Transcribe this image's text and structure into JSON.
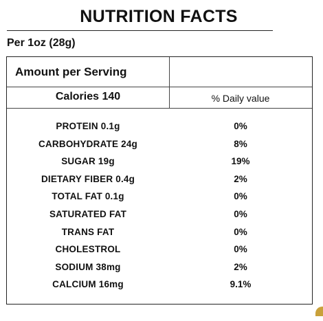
{
  "title": "NUTRITION FACTS",
  "serving": "Per 1oz (28g)",
  "table": {
    "amount_label": "Amount per Serving",
    "calories_label": "Calories 140",
    "daily_value_header": "% Daily value",
    "rows": [
      {
        "nutrient": "PROTEIN 0.1g",
        "percent": "0%"
      },
      {
        "nutrient": "CARBOHYDRATE 24g",
        "percent": "8%"
      },
      {
        "nutrient": "SUGAR 19g",
        "percent": "19%"
      },
      {
        "nutrient": "DIETARY FIBER 0.4g",
        "percent": "2%"
      },
      {
        "nutrient": "TOTAL FAT 0.1g",
        "percent": "0%"
      },
      {
        "nutrient": "SATURATED FAT",
        "percent": "0%"
      },
      {
        "nutrient": "TRANS FAT",
        "percent": "0%"
      },
      {
        "nutrient": "CHOLESTROL",
        "percent": "0%"
      },
      {
        "nutrient": "SODIUM 38mg",
        "percent": "2%"
      },
      {
        "nutrient": "CALCIUM 16mg",
        "percent": "9.1%"
      }
    ]
  },
  "colors": {
    "text": "#111111",
    "border": "#222222",
    "accent": "#c9a13a"
  }
}
